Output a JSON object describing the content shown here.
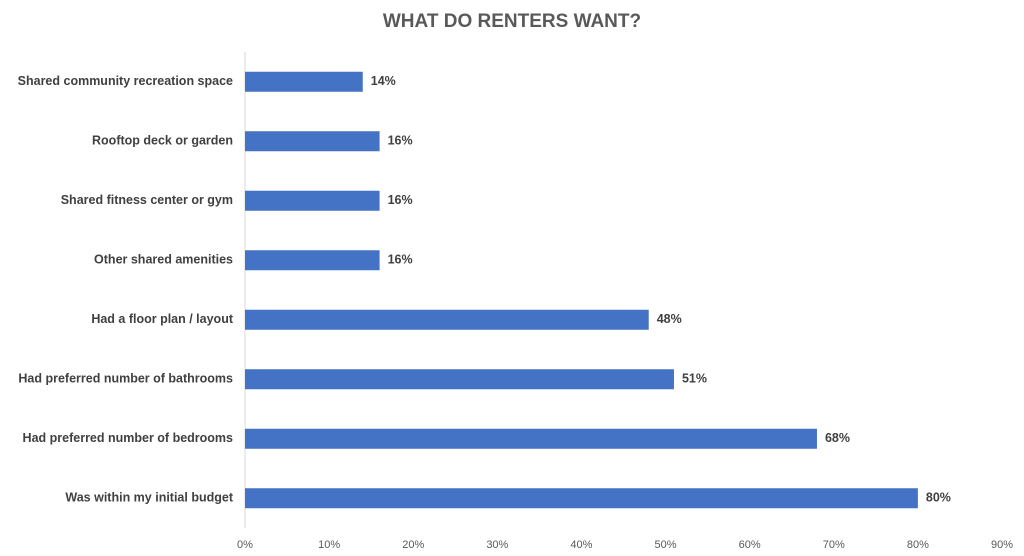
{
  "chart_data": {
    "type": "bar",
    "orientation": "horizontal",
    "title": "WHAT DO RENTERS WANT?",
    "categories": [
      "Shared community recreation space",
      "Rooftop deck or garden",
      "Shared fitness center or gym",
      "Other shared amenities",
      "Had a floor plan / layout",
      "Had preferred number of bathrooms",
      "Had preferred number of bedrooms",
      "Was within my initial budget"
    ],
    "values": [
      14,
      16,
      16,
      16,
      48,
      51,
      68,
      80
    ],
    "value_labels": [
      "14%",
      "16%",
      "16%",
      "16%",
      "48%",
      "51%",
      "68%",
      "80%"
    ],
    "color": "#4472c4",
    "xlim": [
      0,
      90
    ],
    "xticks": [
      {
        "value": 0,
        "label": "0%"
      },
      {
        "value": 10,
        "label": "10%"
      },
      {
        "value": 20,
        "label": "20%"
      },
      {
        "value": 30,
        "label": "30%"
      },
      {
        "value": 40,
        "label": "40%"
      },
      {
        "value": 50,
        "label": "50%"
      },
      {
        "value": 60,
        "label": "60%"
      },
      {
        "value": 70,
        "label": "70%"
      },
      {
        "value": 80,
        "label": "80%"
      },
      {
        "value": 90,
        "label": "90%"
      }
    ],
    "grid": false
  }
}
